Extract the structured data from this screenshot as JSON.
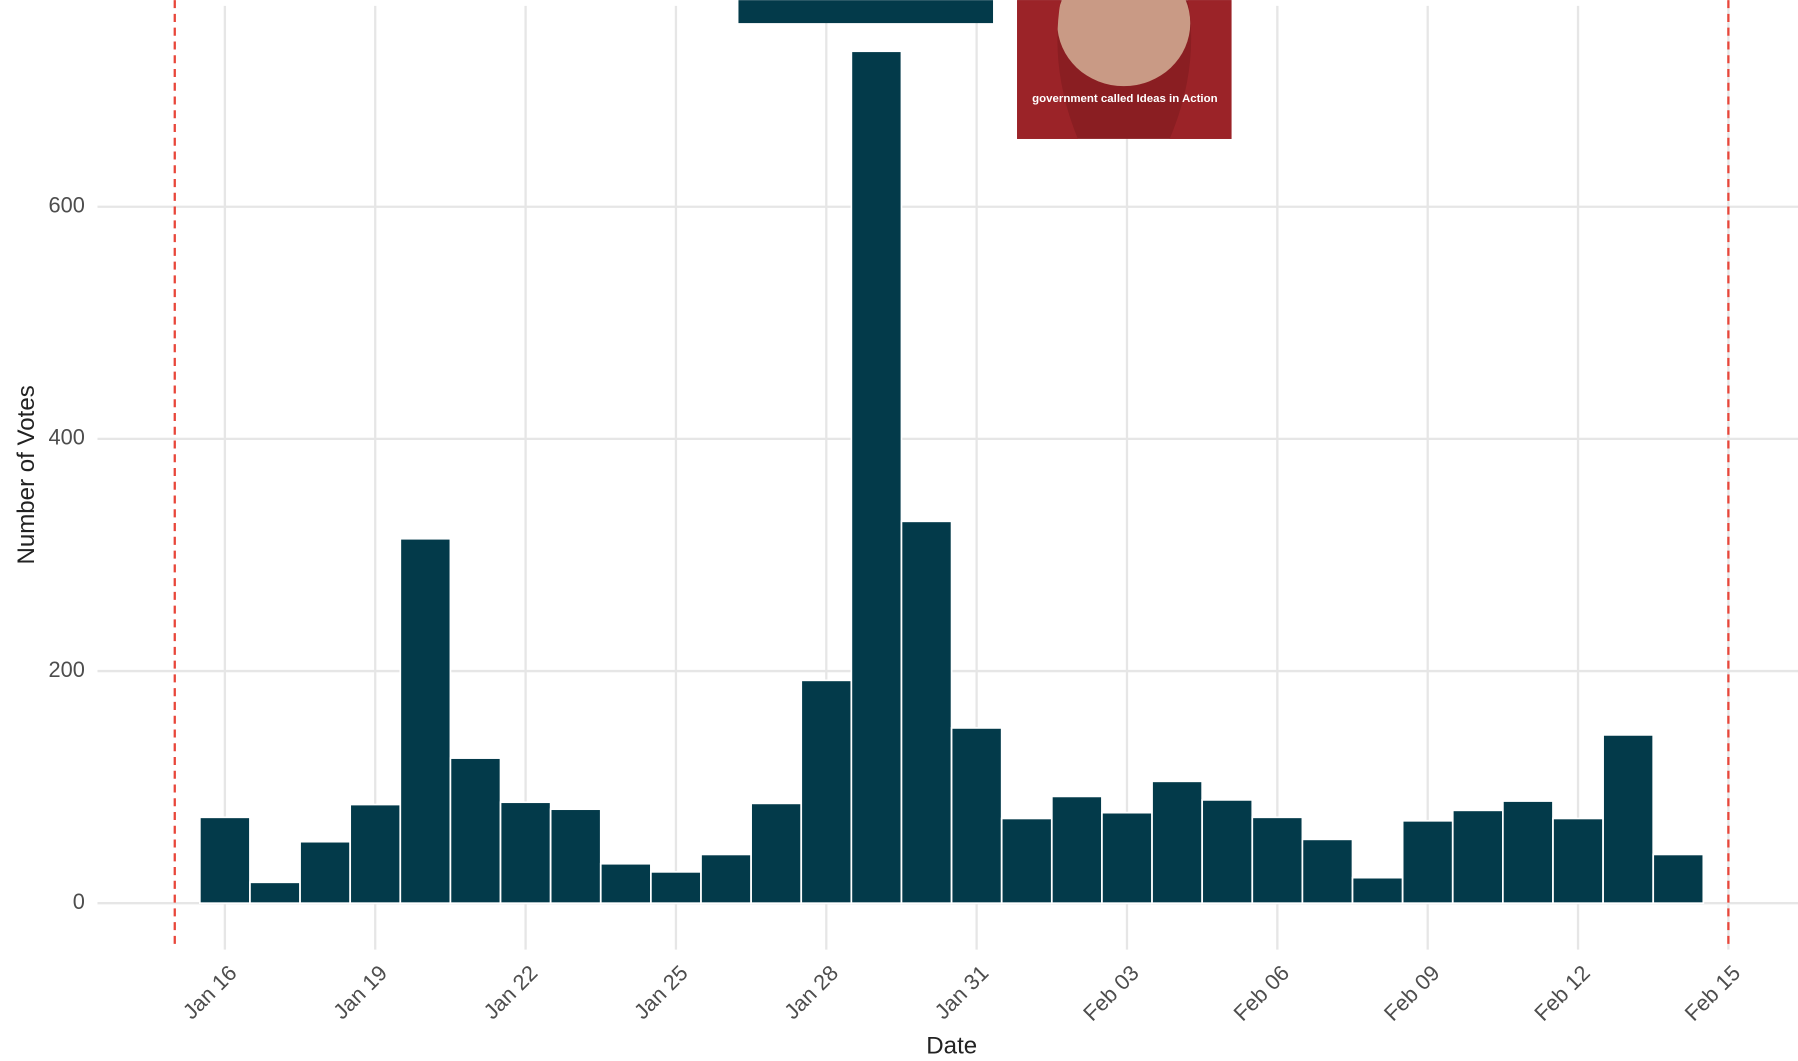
{
  "chart_data": {
    "type": "bar",
    "x_label": "Date",
    "y_label": "Number of Votes",
    "x": [
      "Jan 16",
      "Jan 17",
      "Jan 18",
      "Jan 19",
      "Jan 20",
      "Jan 21",
      "Jan 22",
      "Jan 23",
      "Jan 24",
      "Jan 25",
      "Jan 26",
      "Jan 27",
      "Jan 28",
      "Jan 29",
      "Jan 30",
      "Jan 31",
      "Feb 01",
      "Feb 02",
      "Feb 03",
      "Feb 04",
      "Feb 05",
      "Feb 06",
      "Feb 07",
      "Feb 08",
      "Feb 09",
      "Feb 10",
      "Feb 11",
      "Feb 12",
      "Feb 13",
      "Feb 14"
    ],
    "values": [
      74,
      18,
      53,
      85,
      314,
      125,
      87,
      81,
      34,
      27,
      42,
      86,
      192,
      734,
      329,
      151,
      73,
      92,
      78,
      105,
      89,
      74,
      55,
      22,
      71,
      80,
      88,
      73,
      145,
      42
    ],
    "color": "#033a4a",
    "xlim": [
      "Jan 13",
      "Feb 16"
    ],
    "xticks": [
      "Jan 16",
      "Jan 19",
      "Jan 22",
      "Jan 25",
      "Jan 28",
      "Jan 31",
      "Feb 03",
      "Feb 06",
      "Feb 09",
      "Feb 12",
      "Feb 15"
    ],
    "ylim": [
      -40,
      778
    ],
    "yticks": [
      0,
      200,
      400,
      600
    ],
    "grid": true,
    "vlines": [
      "Jan 15",
      "Feb 15"
    ],
    "vline_color": "#e8463a",
    "overlay_caption": "government called Ideas in Action"
  }
}
